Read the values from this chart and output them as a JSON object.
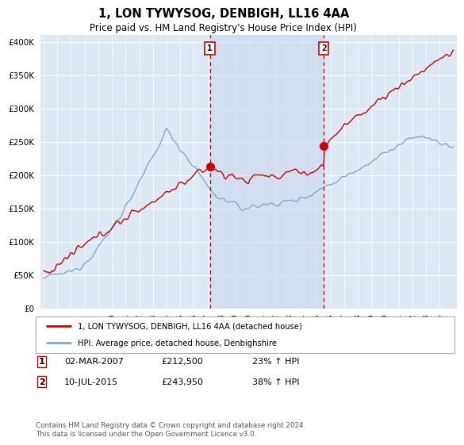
{
  "title": "1, LON TYWYSOG, DENBIGH, LL16 4AA",
  "subtitle": "Price paid vs. HM Land Registry's House Price Index (HPI)",
  "bg_color": "#dce9f5",
  "shaded_color": "#c8d8ed",
  "outer_bg_color": "#ffffff",
  "yticks": [
    0,
    50000,
    100000,
    150000,
    200000,
    250000,
    300000,
    350000,
    400000
  ],
  "ylim": [
    0,
    410000
  ],
  "sale1_date": "02-MAR-2007",
  "sale1_price": 212500,
  "sale1_pct": "23%",
  "sale2_date": "10-JUL-2015",
  "sale2_price": 243950,
  "sale2_pct": "38%",
  "legend_label1": "1, LON TYWYSOG, DENBIGH, LL16 4AA (detached house)",
  "legend_label2": "HPI: Average price, detached house, Denbighshire",
  "footer": "Contains HM Land Registry data © Crown copyright and database right 2024.\nThis data is licensed under the Open Government Licence v3.0.",
  "red_color": "#cc0000",
  "blue_color": "#7aaace",
  "vline_color": "#cc0000",
  "sale1_x": 2007.17,
  "sale2_x": 2015.52,
  "xstart": 1994.75,
  "xend": 2025.25,
  "xtick_years": [
    1995,
    1996,
    1997,
    1998,
    1999,
    2000,
    2001,
    2002,
    2003,
    2004,
    2005,
    2006,
    2007,
    2008,
    2009,
    2010,
    2011,
    2012,
    2013,
    2014,
    2015,
    2016,
    2017,
    2018,
    2019,
    2020,
    2021,
    2022,
    2023,
    2024
  ]
}
